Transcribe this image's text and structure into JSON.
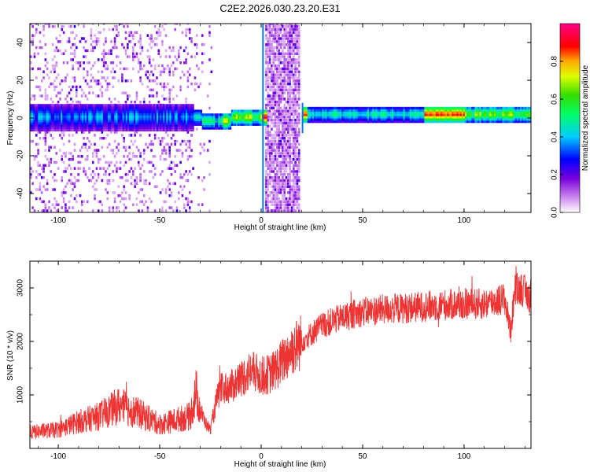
{
  "title": "C2E2.2026.030.23.20.E31",
  "colorbar": {
    "label": "Normalized spectral amplitude",
    "ticks": [
      "0.0",
      "0.2",
      "0.4",
      "0.6",
      "0.8"
    ]
  },
  "chart_data": [
    {
      "type": "heatmap",
      "xlabel": "Height of straight line (km)",
      "ylabel": "Frequency (Hz)",
      "xlim": [
        -114,
        133
      ],
      "ylim": [
        -50,
        50
      ],
      "xticks": [
        -100,
        -50,
        0,
        50,
        100
      ],
      "yticks": [
        -40,
        -20,
        0,
        20,
        40
      ],
      "colorscale": "rainbow (purple-blue-cyan-green-yellow-red-magenta)",
      "value_range": [
        0,
        1
      ],
      "description_points": [
        {
          "x": -95,
          "f": 0,
          "amp": 0.35
        },
        {
          "x": -60,
          "f": 0,
          "amp": 0.4
        },
        {
          "x": -38,
          "f": 0,
          "amp": 0.3
        },
        {
          "x": -25,
          "f": -3,
          "amp": 0.5
        },
        {
          "x": -10,
          "f": 0,
          "amp": 0.6
        },
        {
          "x": 0,
          "f": 0,
          "amp": 0.9
        },
        {
          "x": 22,
          "f": 0,
          "amp": 0.7
        },
        {
          "x": 60,
          "f": 2,
          "amp": 0.5
        },
        {
          "x": 90,
          "f": 2,
          "amp": 0.9
        },
        {
          "x": 125,
          "f": 2,
          "amp": 0.7
        }
      ]
    },
    {
      "type": "line",
      "xlabel": "Height of straight line (km)",
      "ylabel": "SNR (10 * v/v)",
      "xlim": [
        -114,
        133
      ],
      "ylim": [
        0,
        3500
      ],
      "xticks": [
        -100,
        -50,
        0,
        50,
        100
      ],
      "yticks": [
        1000,
        2000,
        3000
      ],
      "series": [
        {
          "color": "#ee3333",
          "x": [
            -114,
            -100,
            -90,
            -80,
            -70,
            -60,
            -50,
            -40,
            -35,
            -32,
            -30,
            -27,
            -25,
            -22,
            -20,
            -15,
            -10,
            -5,
            0,
            5,
            10,
            15,
            20,
            25,
            30,
            40,
            50,
            60,
            70,
            80,
            90,
            100,
            110,
            115,
            120,
            123,
            125,
            128,
            133
          ],
          "values": [
            300,
            350,
            500,
            600,
            800,
            650,
            450,
            550,
            600,
            1050,
            700,
            450,
            350,
            900,
            1100,
            1150,
            1300,
            1450,
            1350,
            1400,
            1600,
            1850,
            2000,
            2150,
            2300,
            2450,
            2550,
            2600,
            2620,
            2650,
            2680,
            2700,
            2700,
            2750,
            2800,
            2200,
            2950,
            3000,
            2800
          ]
        }
      ]
    }
  ]
}
